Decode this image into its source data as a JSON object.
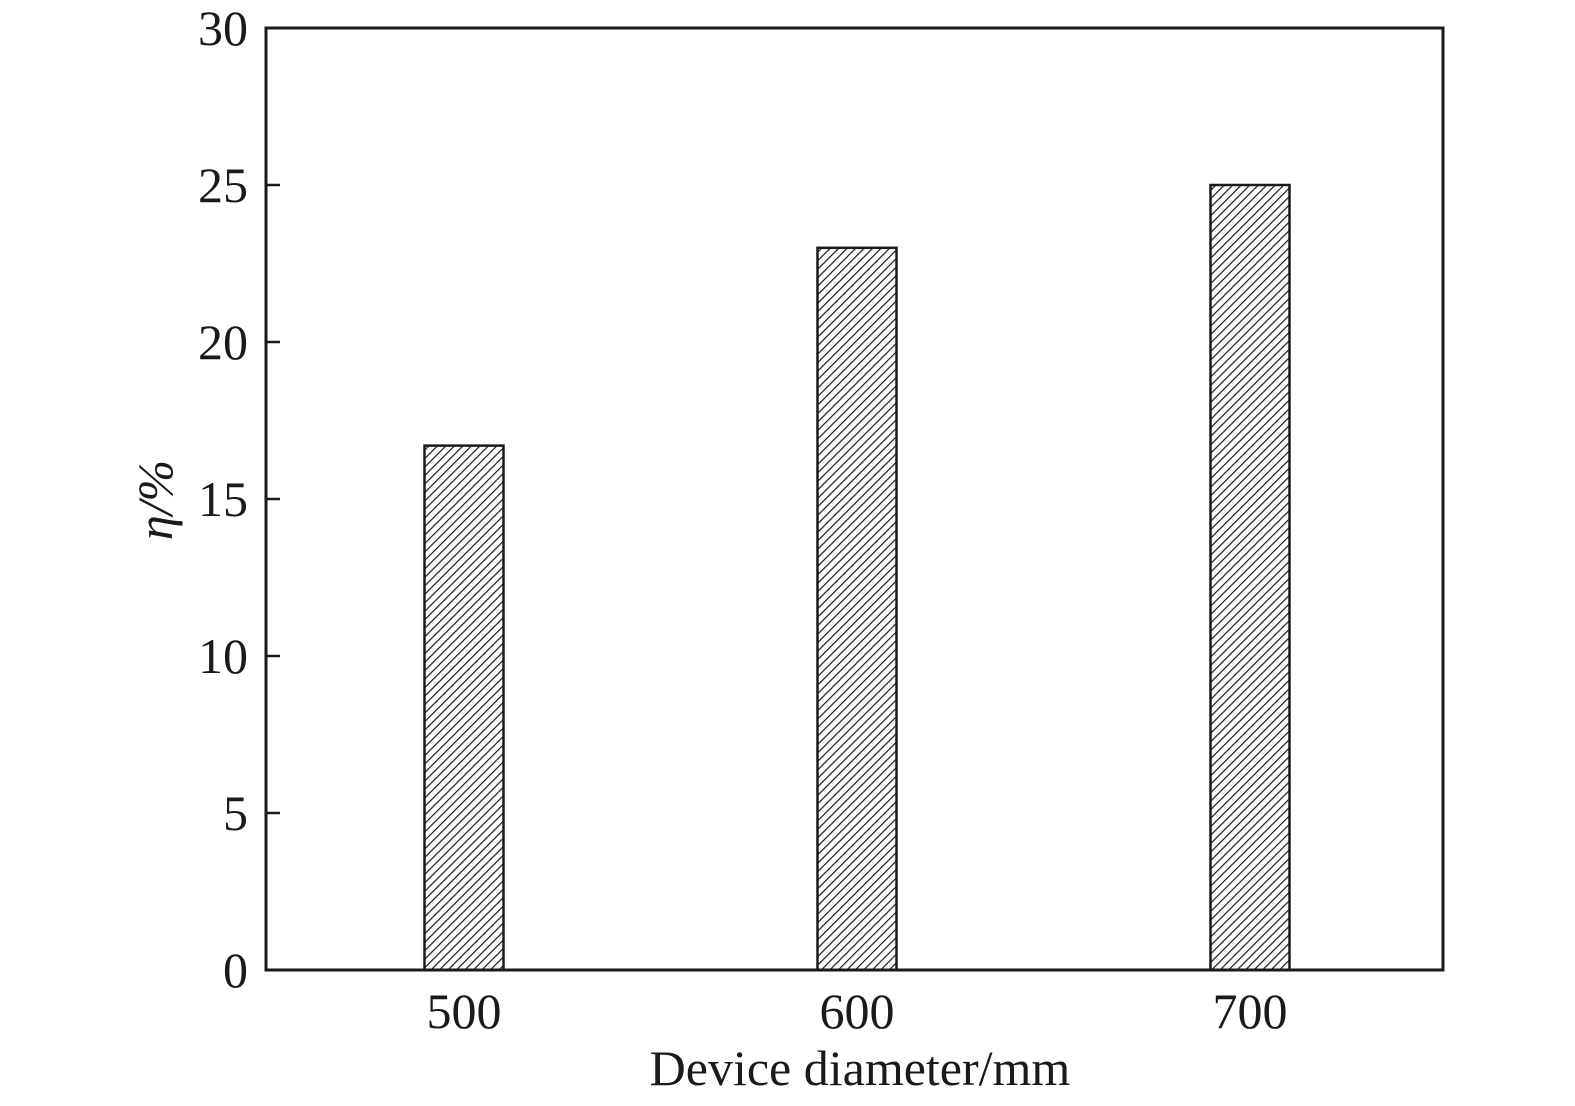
{
  "chart_data": {
    "type": "bar",
    "categories": [
      "500",
      "600",
      "700"
    ],
    "values": [
      16.7,
      23.0,
      25.0
    ],
    "xlabel": "Device diameter/mm",
    "ylabel": "η/%",
    "ylim": [
      0,
      30
    ],
    "yticks": [
      "0",
      "5",
      "10",
      "15",
      "20",
      "25",
      "30"
    ],
    "grid": false,
    "bar_fill": "hatched",
    "colors": {
      "axis": "#1a1a1a",
      "bar_stroke": "#1a1a1a",
      "bar_hatch": "#1a1a1a",
      "background": "#ffffff"
    }
  }
}
